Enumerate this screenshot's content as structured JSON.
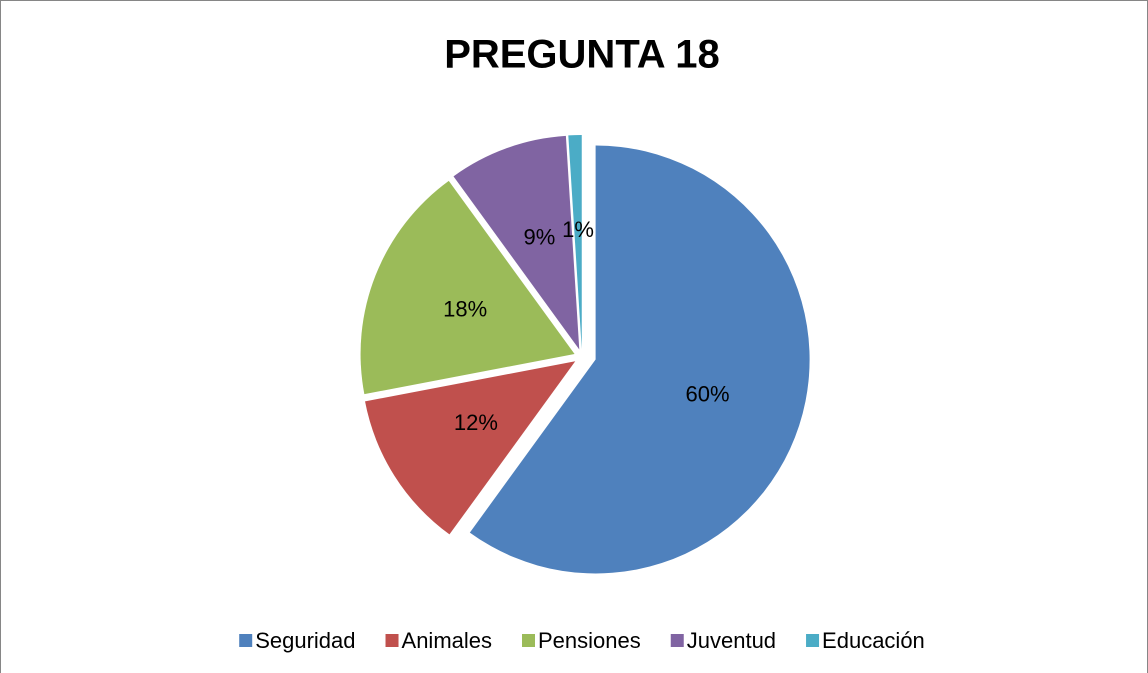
{
  "chart_data": {
    "type": "pie",
    "title": "PREGUNTA 18",
    "categories": [
      "Seguridad",
      "Animales",
      "Pensiones",
      "Juventud",
      "Educación"
    ],
    "values": [
      60,
      12,
      18,
      9,
      1
    ],
    "value_labels": [
      "60%",
      "12%",
      "18%",
      "9%",
      "1%"
    ],
    "colors": [
      "#4f81bd",
      "#c0504d",
      "#9bbb59",
      "#8064a2",
      "#4bacc6"
    ],
    "legend": "bottom"
  }
}
